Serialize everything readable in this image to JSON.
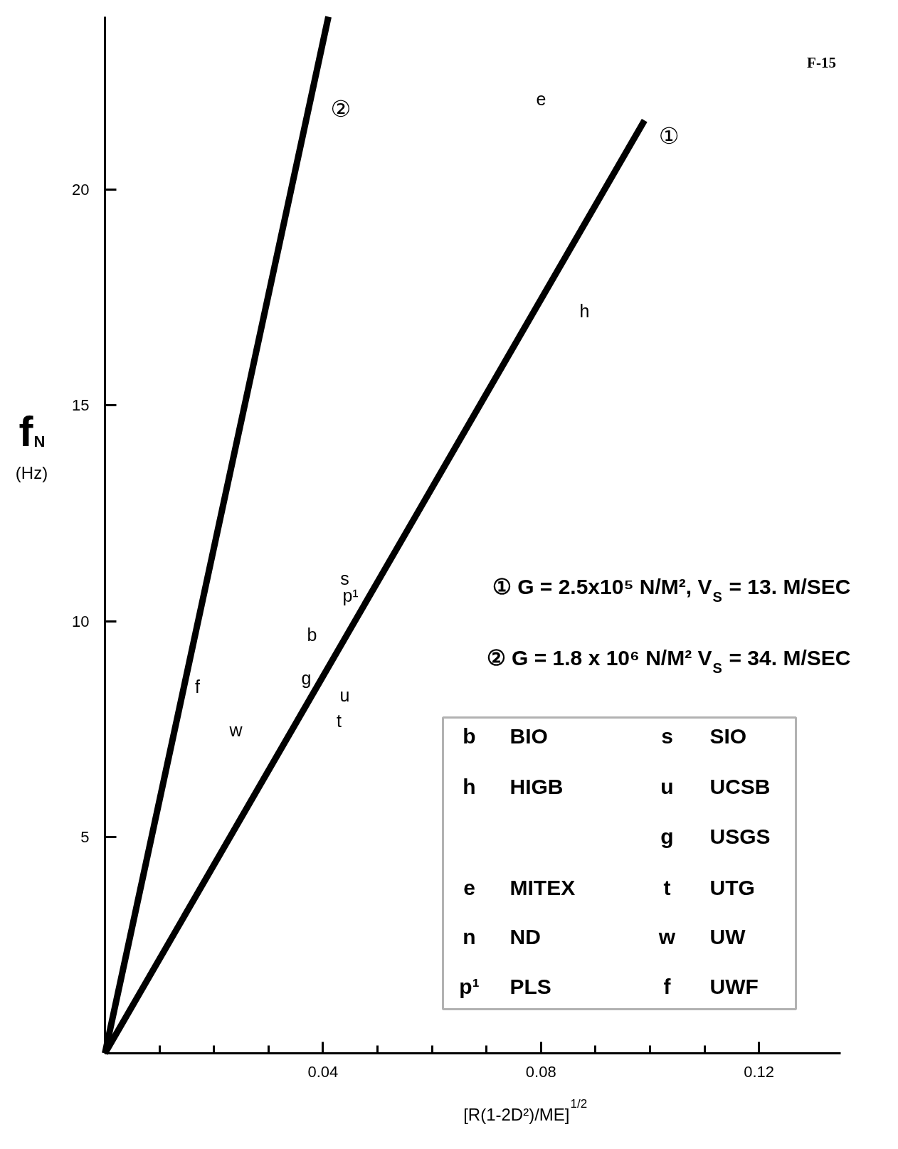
{
  "chart_data": {
    "type": "line",
    "xlabel": "[R(1-2D²)/ME]$^{1/2}$",
    "ylabel": "f$_{N}$\n(Hz)",
    "xlim": [
      0,
      0.135
    ],
    "ylim": [
      0,
      24
    ],
    "xticks": [
      {
        "value": 0.01,
        "label": null
      },
      {
        "value": 0.02,
        "label": null
      },
      {
        "value": 0.03,
        "label": null
      },
      0.04,
      {
        "value": 0.05,
        "label": null
      },
      {
        "value": 0.06,
        "label": null
      },
      {
        "value": 0.07,
        "label": null
      },
      0.08,
      {
        "value": 0.09,
        "label": null
      },
      {
        "value": 0.1,
        "label": null
      },
      {
        "value": 0.11,
        "label": null
      },
      0.12
    ],
    "yticks": [
      5,
      10,
      15,
      20
    ],
    "series": [
      {
        "name": "①",
        "color": "#000000",
        "x": [
          0,
          0.099
        ],
        "values": [
          0,
          21.6
        ]
      },
      {
        "name": "②",
        "color": "#000000",
        "x": [
          0,
          0.041
        ],
        "values": [
          0,
          24.0
        ]
      }
    ],
    "annotations": [
      "F-15",
      "① G = 2.5x10⁵ N/M², V$_{S}$ = 13. M/SEC",
      "② G = 1.8 x 10⁶ N/M² V$_{S}$ = 34. M/SEC",
      "b BIO",
      "s SIO",
      "h HIGB",
      "u UCSB",
      "g USGS",
      "e MITEX",
      "t UTG",
      "n ND",
      "w UW",
      "p¹ PLS",
      "f UWF",
      "e",
      "h",
      "s",
      "p¹",
      "b",
      "g",
      "u",
      "t",
      "w",
      "f"
    ]
  }
}
